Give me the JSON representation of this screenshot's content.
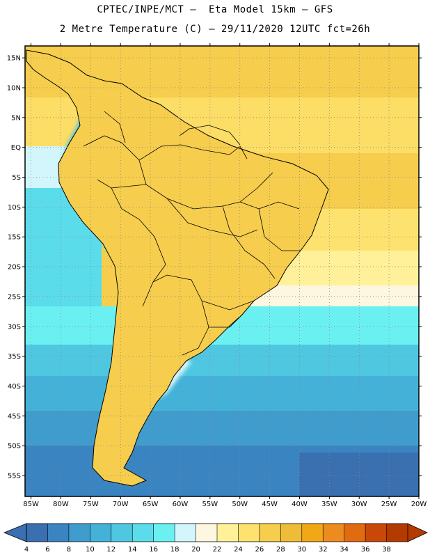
{
  "title": {
    "line1": "CPTEC/INPE/MCT –  Eta Model 15km – GFS",
    "line2": "2 Metre Temperature (C) – 29/11/2020 12UTC fct=26h"
  },
  "axes": {
    "lat_labels": [
      "15N",
      "10N",
      "5N",
      "EQ",
      "5S",
      "10S",
      "15S",
      "20S",
      "25S",
      "30S",
      "35S",
      "40S",
      "45S",
      "50S",
      "55S"
    ],
    "lat_values": [
      15,
      10,
      5,
      0,
      -5,
      -10,
      -15,
      -20,
      -25,
      -30,
      -35,
      -40,
      -45,
      -50,
      -55
    ],
    "lon_labels": [
      "85W",
      "80W",
      "75W",
      "70W",
      "65W",
      "60W",
      "55W",
      "50W",
      "45W",
      "40W",
      "35W",
      "30W",
      "25W",
      "20W"
    ],
    "lon_values": [
      -85,
      -80,
      -75,
      -70,
      -65,
      -60,
      -55,
      -50,
      -45,
      -40,
      -35,
      -30,
      -25,
      -20
    ],
    "lat_range": [
      -58.5,
      17
    ],
    "lon_range": [
      -86,
      -20
    ]
  },
  "colorbar": {
    "labels": [
      "4",
      "6",
      "8",
      "10",
      "12",
      "14",
      "16",
      "18",
      "20",
      "22",
      "24",
      "26",
      "28",
      "30",
      "32",
      "34",
      "36",
      "38"
    ],
    "colors": [
      "#3a6fb0",
      "#3a84c2",
      "#3f9ccd",
      "#44b2d8",
      "#4fc7e1",
      "#5bdcea",
      "#6bf0f2",
      "#d2f6fb",
      "#fdf6e0",
      "#fff199",
      "#fde26f",
      "#f6cd4c",
      "#efbc37",
      "#f2a716",
      "#ec8c1f",
      "#e06b10",
      "#c94808",
      "#b33a00"
    ],
    "below_color": "#3a6fb0",
    "above_color": "#b33a00"
  }
}
